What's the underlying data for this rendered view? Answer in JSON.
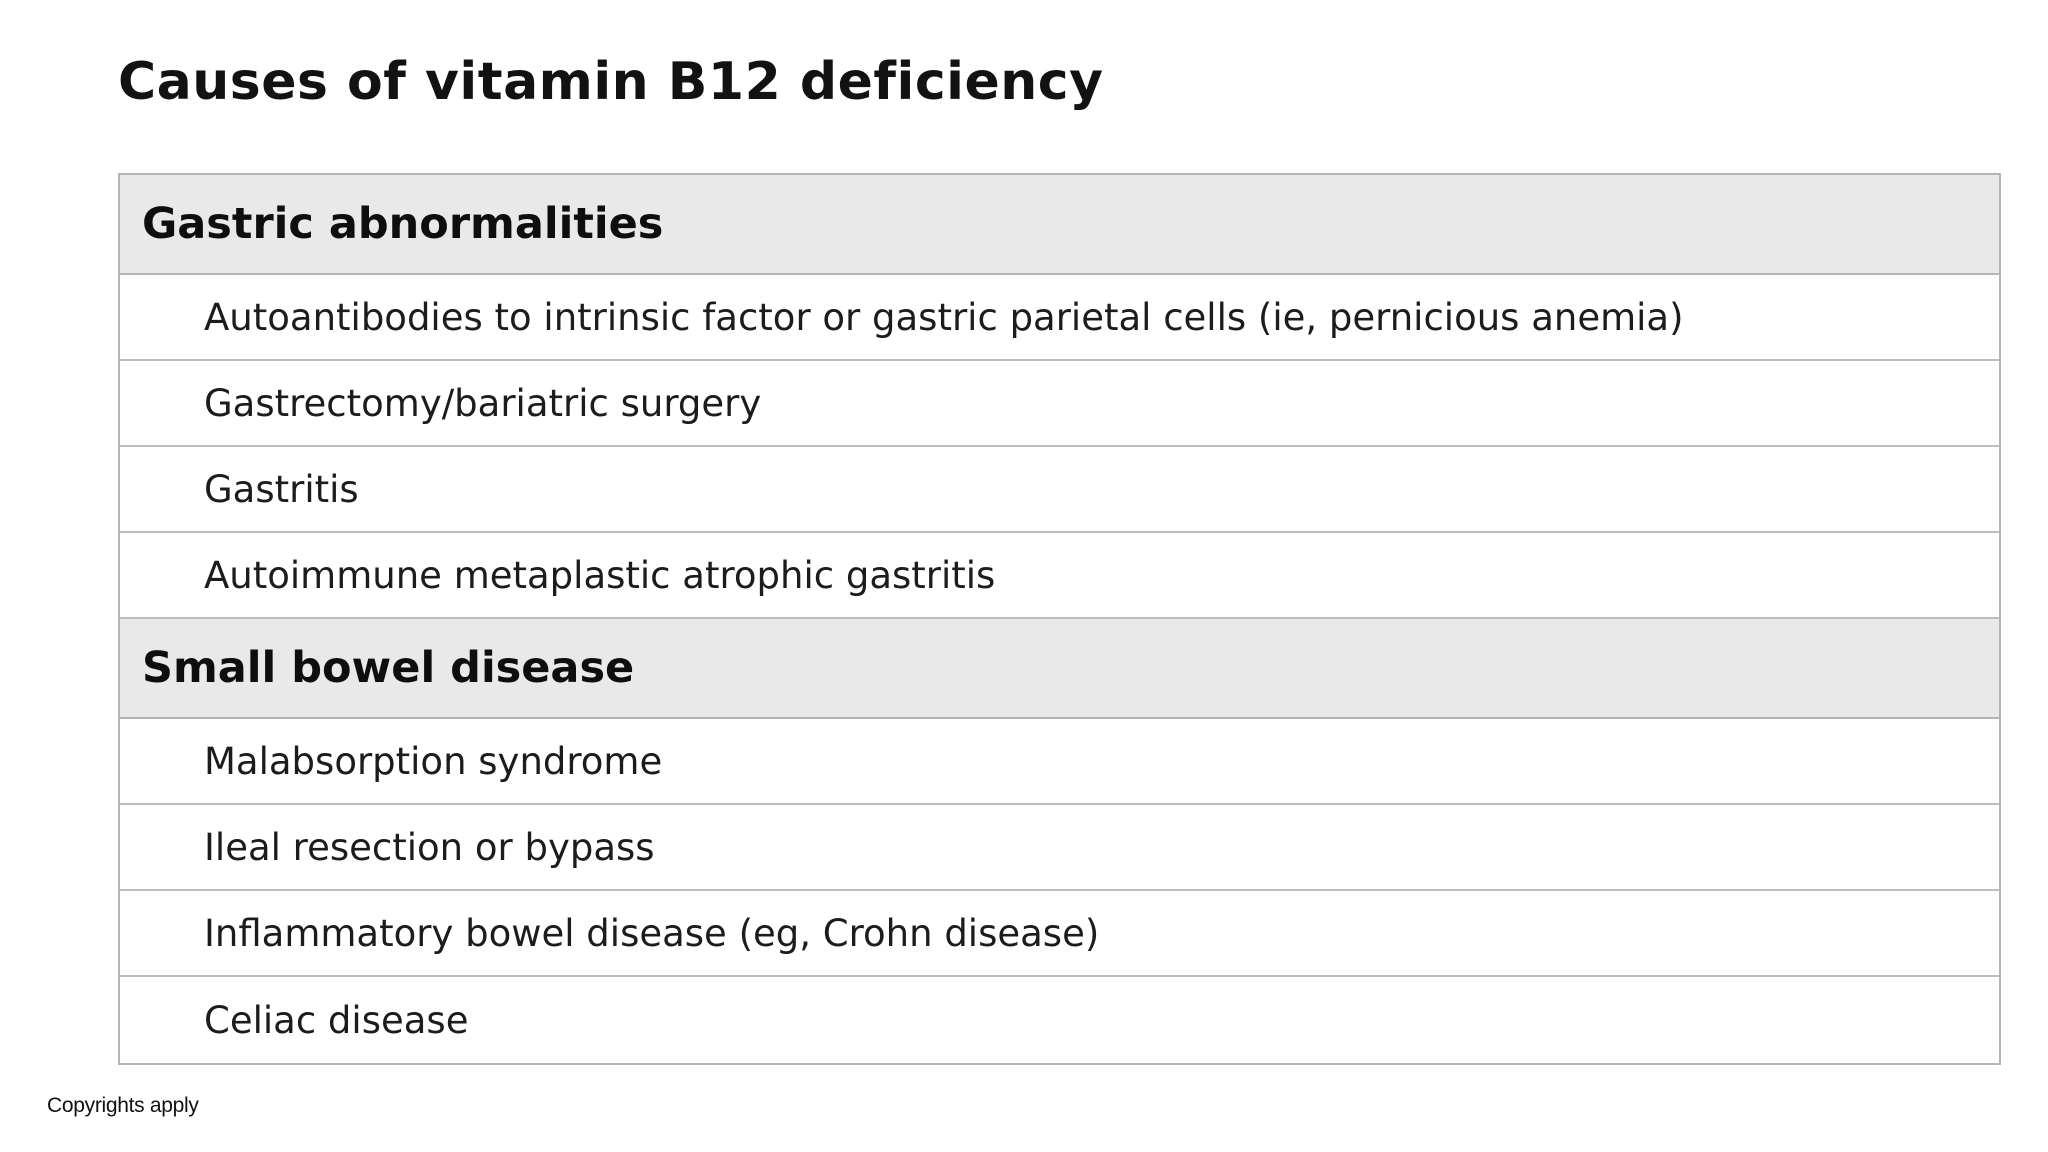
{
  "page": {
    "title": "Causes of vitamin B12 deficiency",
    "footer": "Copyrights apply"
  },
  "colors": {
    "section_header_bg": "#e9e9e9",
    "table_border": "#b4b4b4",
    "text": "#1c1c1c",
    "background": "#ffffff"
  },
  "table": {
    "sections": [
      {
        "header": "Gastric abnormalities",
        "rows": [
          "Autoantibodies to intrinsic factor or gastric parietal cells (ie, pernicious anemia)",
          "Gastrectomy/bariatric surgery",
          "Gastritis",
          "Autoimmune metaplastic atrophic gastritis"
        ]
      },
      {
        "header": "Small bowel disease",
        "rows": [
          "Malabsorption syndrome",
          "Ileal resection or bypass",
          "Inflammatory bowel disease (eg, Crohn disease)",
          "Celiac disease"
        ]
      }
    ]
  }
}
